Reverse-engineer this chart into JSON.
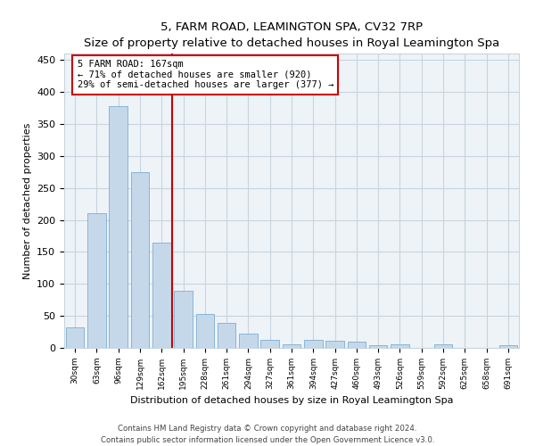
{
  "title": "5, FARM ROAD, LEAMINGTON SPA, CV32 7RP",
  "subtitle": "Size of property relative to detached houses in Royal Leamington Spa",
  "xlabel": "Distribution of detached houses by size in Royal Leamington Spa",
  "ylabel": "Number of detached properties",
  "categories": [
    "30sqm",
    "63sqm",
    "96sqm",
    "129sqm",
    "162sqm",
    "195sqm",
    "228sqm",
    "261sqm",
    "294sqm",
    "327sqm",
    "361sqm",
    "394sqm",
    "427sqm",
    "460sqm",
    "493sqm",
    "526sqm",
    "559sqm",
    "592sqm",
    "625sqm",
    "658sqm",
    "691sqm"
  ],
  "values": [
    32,
    210,
    378,
    275,
    165,
    89,
    53,
    39,
    23,
    12,
    6,
    12,
    11,
    10,
    4,
    5,
    0,
    5,
    0,
    0,
    4
  ],
  "bar_color": "#c5d8ea",
  "bar_edge_color": "#7aadd4",
  "vline_x": 4.5,
  "vline_color": "#cc0000",
  "annotation_text": "5 FARM ROAD: 167sqm\n← 71% of detached houses are smaller (920)\n29% of semi-detached houses are larger (377) →",
  "annotation_box_color": "white",
  "annotation_box_edge": "#cc0000",
  "ylim": [
    0,
    460
  ],
  "yticks": [
    0,
    50,
    100,
    150,
    200,
    250,
    300,
    350,
    400,
    450
  ],
  "footer1": "Contains HM Land Registry data © Crown copyright and database right 2024.",
  "footer2": "Contains public sector information licensed under the Open Government Licence v3.0.",
  "bg_color": "#eef3f8",
  "grid_color": "#c8d4de"
}
